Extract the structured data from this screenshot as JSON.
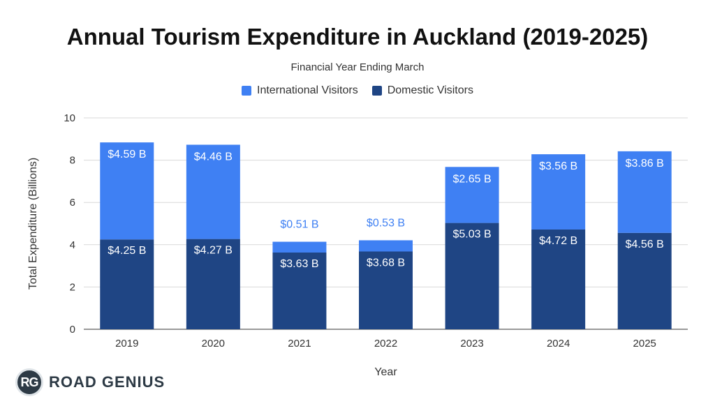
{
  "chart_data": {
    "type": "bar",
    "stacked": true,
    "title": "Annual Tourism Expenditure in Auckland (2019-2025)",
    "subtitle": "Financial Year Ending March",
    "xlabel": "Year",
    "ylabel": "Total Expenditure (Billions)",
    "ylim": [
      0,
      10
    ],
    "yticks": [
      "0",
      "2",
      "4",
      "6",
      "8",
      "10"
    ],
    "grid": true,
    "legend_position": "top",
    "categories": [
      "2019",
      "2020",
      "2021",
      "2022",
      "2023",
      "2024",
      "2025"
    ],
    "series": [
      {
        "name": "Domestic Visitors",
        "color": "#1f4584",
        "values": [
          4.25,
          4.27,
          3.63,
          3.68,
          5.03,
          4.72,
          4.56
        ],
        "labels": [
          "$4.25 B",
          "$4.27 B",
          "$3.63 B",
          "$3.68 B",
          "$5.03 B",
          "$4.72 B",
          "$4.56 B"
        ]
      },
      {
        "name": "International Visitors",
        "color": "#3f80f3",
        "values": [
          4.59,
          4.46,
          0.51,
          0.53,
          2.65,
          3.56,
          3.86
        ],
        "labels": [
          "$4.59 B",
          "$4.46 B",
          "$0.51 B",
          "$0.53 B",
          "$2.65 B",
          "$3.56 B",
          "$3.86 B"
        ]
      }
    ],
    "legend": [
      "International Visitors",
      "Domestic Visitors"
    ]
  },
  "branding": {
    "logo_badge": "RG",
    "logo_text": "ROAD GENIUS"
  }
}
